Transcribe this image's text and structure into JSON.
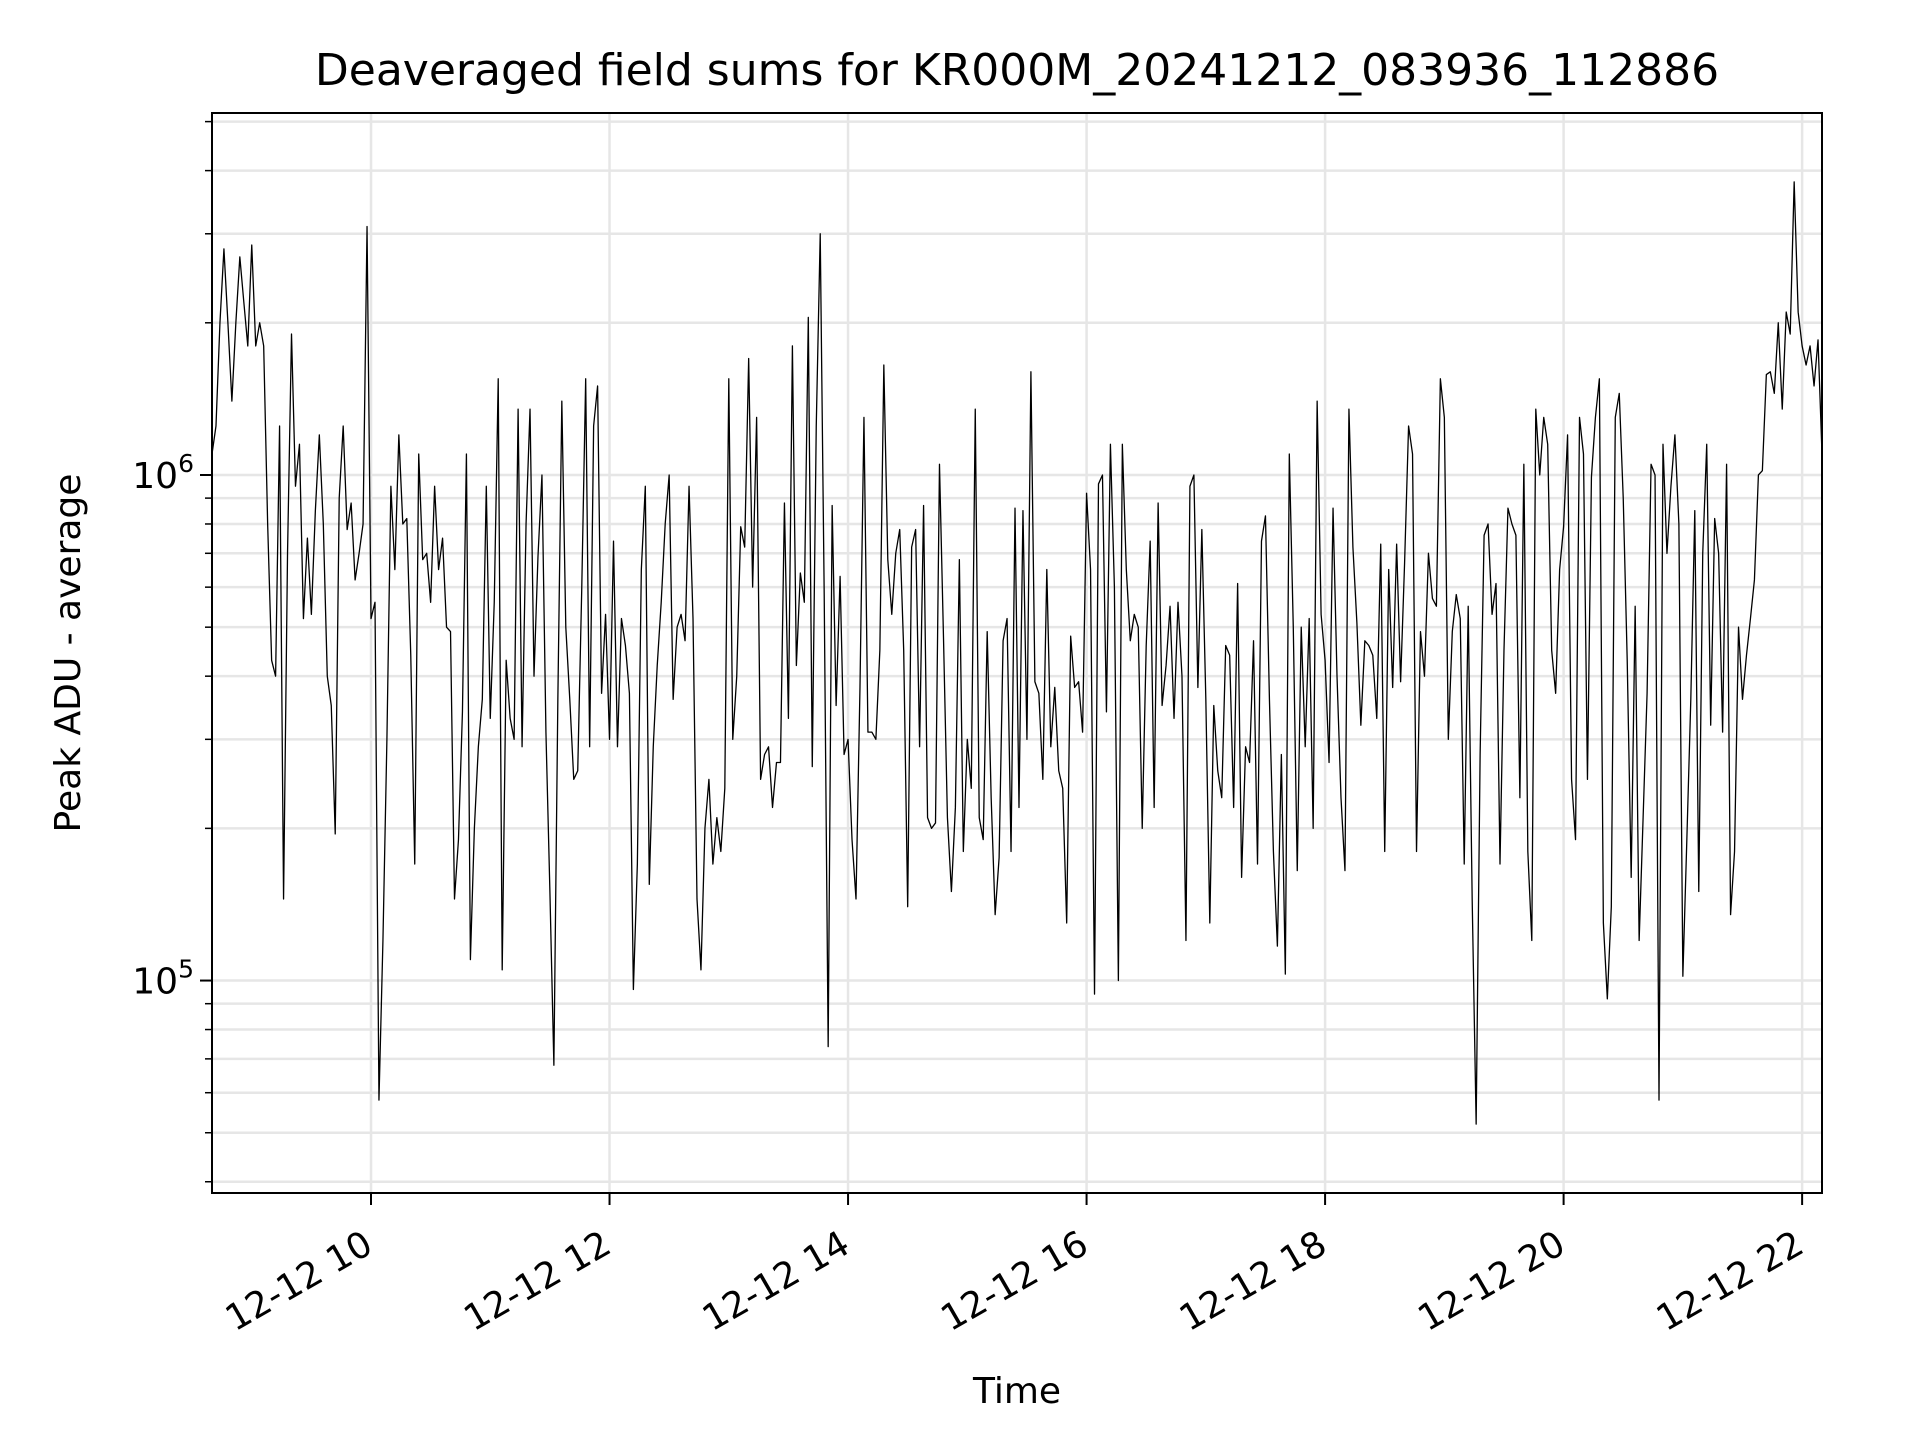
{
  "chart_data": {
    "type": "line",
    "title": "Deaveraged field sums for KR000M_20241212_083936_112886",
    "xlabel": "Time",
    "ylabel": "Peak ADU - average",
    "yscale": "log",
    "ylim": [
      38000,
      5200000
    ],
    "xlim": [
      "2024-12-12 08:40",
      "2024-12-12 22:10"
    ],
    "grid": "on",
    "line_color": "#000000",
    "x_ticks": [
      {
        "t": "2024-12-12 10:00",
        "label": "12-12 10"
      },
      {
        "t": "2024-12-12 12:00",
        "label": "12-12 12"
      },
      {
        "t": "2024-12-12 14:00",
        "label": "12-12 14"
      },
      {
        "t": "2024-12-12 16:00",
        "label": "12-12 16"
      },
      {
        "t": "2024-12-12 18:00",
        "label": "12-12 18"
      },
      {
        "t": "2024-12-12 20:00",
        "label": "12-12 20"
      },
      {
        "t": "2024-12-12 22:00",
        "label": "12-12 22"
      }
    ],
    "y_ticks": [
      {
        "value": 100000,
        "base": "10",
        "exp": "5"
      },
      {
        "value": 1000000,
        "base": "10",
        "exp": "6"
      }
    ],
    "x_start": "2024-12-12 08:40",
    "x_end": "2024-12-12 22:10",
    "series": [
      {
        "values": [
          1100000,
          1250000,
          2000000,
          2800000,
          2000000,
          1400000,
          2000000,
          2700000,
          2200000,
          1800000,
          2850000,
          1800000,
          2000000,
          1800000,
          800000,
          430000,
          400000,
          1250000,
          145000,
          700000,
          1900000,
          950000,
          1150000,
          520000,
          750000,
          530000,
          850000,
          1200000,
          800000,
          400000,
          350000,
          195000,
          900000,
          1250000,
          780000,
          880000,
          620000,
          700000,
          800000,
          3100000,
          520000,
          560000,
          58000,
          120000,
          300000,
          950000,
          650000,
          1200000,
          800000,
          820000,
          440000,
          170000,
          1100000,
          680000,
          700000,
          560000,
          950000,
          650000,
          750000,
          500000,
          490000,
          145000,
          190000,
          340000,
          1100000,
          110000,
          200000,
          290000,
          360000,
          950000,
          330000,
          560000,
          1550000,
          105000,
          430000,
          330000,
          300000,
          1350000,
          290000,
          800000,
          1350000,
          400000,
          690000,
          1000000,
          310000,
          150000,
          68000,
          360000,
          1400000,
          500000,
          360000,
          250000,
          260000,
          590000,
          1550000,
          290000,
          1250000,
          1500000,
          370000,
          530000,
          300000,
          740000,
          290000,
          520000,
          460000,
          370000,
          96000,
          170000,
          650000,
          950000,
          155000,
          290000,
          420000,
          560000,
          800000,
          1000000,
          360000,
          500000,
          530000,
          470000,
          950000,
          520000,
          145000,
          105000,
          200000,
          250000,
          170000,
          210000,
          180000,
          240000,
          1550000,
          300000,
          400000,
          790000,
          720000,
          1700000,
          600000,
          1300000,
          250000,
          280000,
          290000,
          220000,
          270000,
          270000,
          880000,
          330000,
          1800000,
          420000,
          640000,
          560000,
          2050000,
          265000,
          1250000,
          3000000,
          580000,
          74000,
          870000,
          350000,
          630000,
          280000,
          300000,
          190000,
          145000,
          380000,
          1300000,
          310000,
          310000,
          300000,
          450000,
          1650000,
          680000,
          530000,
          700000,
          780000,
          450000,
          140000,
          720000,
          780000,
          290000,
          870000,
          210000,
          200000,
          205000,
          1050000,
          480000,
          210000,
          150000,
          220000,
          680000,
          180000,
          300000,
          240000,
          1350000,
          210000,
          190000,
          490000,
          230000,
          135000,
          175000,
          470000,
          520000,
          180000,
          860000,
          220000,
          850000,
          300000,
          1600000,
          390000,
          370000,
          250000,
          650000,
          290000,
          380000,
          260000,
          240000,
          130000,
          480000,
          380000,
          390000,
          310000,
          920000,
          650000,
          94000,
          960000,
          1000000,
          340000,
          1150000,
          600000,
          100000,
          1150000,
          650000,
          470000,
          530000,
          500000,
          200000,
          460000,
          740000,
          220000,
          880000,
          350000,
          420000,
          550000,
          330000,
          560000,
          400000,
          120000,
          950000,
          1000000,
          380000,
          780000,
          360000,
          130000,
          350000,
          260000,
          230000,
          460000,
          440000,
          220000,
          610000,
          160000,
          290000,
          270000,
          470000,
          170000,
          740000,
          830000,
          360000,
          180000,
          117000,
          280000,
          103000,
          1100000,
          500000,
          165000,
          500000,
          290000,
          520000,
          200000,
          1400000,
          530000,
          430000,
          270000,
          860000,
          400000,
          230000,
          165000,
          1350000,
          720000,
          510000,
          320000,
          470000,
          460000,
          440000,
          330000,
          730000,
          180000,
          650000,
          380000,
          730000,
          390000,
          670000,
          1250000,
          1100000,
          180000,
          490000,
          400000,
          700000,
          570000,
          550000,
          1550000,
          1300000,
          300000,
          490000,
          580000,
          520000,
          170000,
          550000,
          145000,
          52000,
          280000,
          760000,
          800000,
          530000,
          610000,
          170000,
          450000,
          860000,
          800000,
          760000,
          230000,
          1050000,
          180000,
          120000,
          1350000,
          1000000,
          1300000,
          1150000,
          450000,
          370000,
          650000,
          790000,
          1200000,
          250000,
          190000,
          1300000,
          1100000,
          250000,
          990000,
          1300000,
          1550000,
          130000,
          92000,
          140000,
          1300000,
          1450000,
          900000,
          430000,
          160000,
          550000,
          120000,
          210000,
          370000,
          1050000,
          1000000,
          58000,
          1150000,
          700000,
          950000,
          1200000,
          800000,
          102000,
          190000,
          360000,
          850000,
          150000,
          700000,
          1150000,
          320000,
          820000,
          700000,
          310000,
          1050000,
          135000,
          180000,
          500000,
          360000,
          440000,
          520000,
          620000,
          1000000,
          1020000,
          1580000,
          1600000,
          1450000,
          2000000,
          1350000,
          2100000,
          1900000,
          3800000,
          2100000,
          1800000,
          1650000,
          1800000,
          1500000,
          1850000,
          1100000
        ]
      }
    ]
  }
}
